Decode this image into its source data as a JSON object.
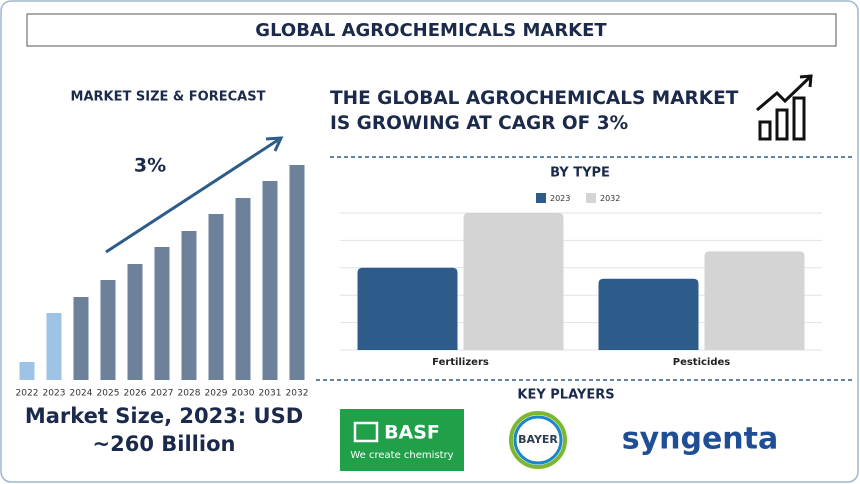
{
  "header": {
    "title": "GLOBAL AGROCHEMICALS MARKET"
  },
  "headline": "THE GLOBAL AGROCHEMICALS MARKET IS GROWING AT CAGR OF 3%",
  "chart_data": [
    {
      "type": "bar",
      "title": "MARKET SIZE & FORECAST",
      "annotation": "3%",
      "categories": [
        "2022",
        "2023",
        "2024",
        "2025",
        "2026",
        "2027",
        "2028",
        "2029",
        "2030",
        "2031",
        "2032"
      ],
      "values": [
        18,
        67,
        83,
        100,
        116,
        133,
        149,
        166,
        182,
        199,
        215
      ],
      "colors": [
        "#9dc3e6",
        "#9dc3e6",
        "#6d819b",
        "#6d819b",
        "#6d819b",
        "#6d819b",
        "#6d819b",
        "#6d819b",
        "#6d819b",
        "#6d819b",
        "#6d819b"
      ],
      "ylim": [
        0,
        220
      ]
    },
    {
      "type": "grouped-bar",
      "title": "BY TYPE",
      "categories": [
        "Fertilizers",
        "Pesticides"
      ],
      "series": [
        {
          "name": "2023",
          "color": "#2e5c8a",
          "values": [
            3.0,
            2.6
          ]
        },
        {
          "name": "2032",
          "color": "#d4d4d4",
          "values": [
            5.0,
            3.6
          ]
        }
      ],
      "ylim": [
        0,
        5
      ],
      "yticks": [
        0,
        1,
        2,
        3,
        4,
        5
      ],
      "grid": true,
      "tick_labels": false,
      "legend": "top"
    }
  ],
  "footer": {
    "market_size": "Market Size, 2023: USD ~260 Billion"
  },
  "key_players": {
    "title": "KEY PLAYERS",
    "basf": "BASF",
    "basf_tagline": "We create chemistry",
    "bayer": "BAYER",
    "syngenta": "syngenta"
  }
}
